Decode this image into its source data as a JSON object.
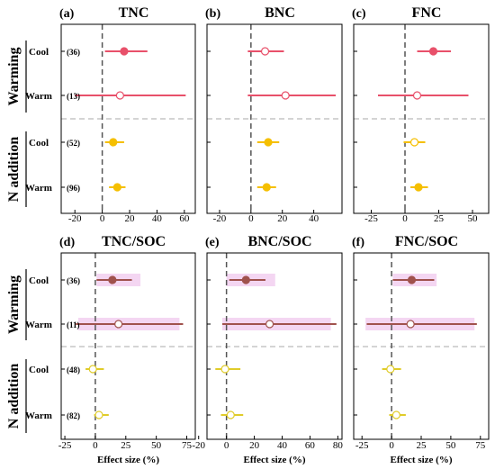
{
  "colors": {
    "warming_top": "#e8506a",
    "n_addition_top": "#f5bf00",
    "warming_bottom": "#a0524d",
    "n_addition_bottom": "#e0cc2a",
    "band": "#f4d6f2",
    "axis": "#000000",
    "dashed_zero": "#555555",
    "separator": "#aaaaaa"
  },
  "row_labels": [
    "Cool",
    "Warm",
    "Cool",
    "Warm"
  ],
  "group_labels": [
    "Warming",
    "N addition"
  ],
  "x_axis_label": "Effect size (%)",
  "chart_data": [
    {
      "type": "forest",
      "panel_label": "(a)",
      "title": "TNC",
      "xlim": [
        -30,
        68
      ],
      "xticks": [
        -20,
        0,
        20,
        40,
        60
      ],
      "counts": [
        "(36)",
        "(13)",
        "(52)",
        "(96)"
      ],
      "points": [
        {
          "group": "Warming",
          "row": "Cool",
          "mean": 16,
          "ci": [
            2,
            33
          ],
          "significant": true
        },
        {
          "group": "Warming",
          "row": "Warm",
          "mean": 13,
          "ci": [
            -20,
            61
          ],
          "significant": false
        },
        {
          "group": "N addition",
          "row": "Cool",
          "mean": 8,
          "ci": [
            2,
            16
          ],
          "significant": true
        },
        {
          "group": "N addition",
          "row": "Warm",
          "mean": 11,
          "ci": [
            5,
            17
          ],
          "significant": true
        }
      ]
    },
    {
      "type": "forest",
      "panel_label": "(b)",
      "title": "BNC",
      "xlim": [
        -28,
        58
      ],
      "xticks": [
        -20,
        0,
        20,
        40
      ],
      "counts": [],
      "points": [
        {
          "group": "Warming",
          "row": "Cool",
          "mean": 9,
          "ci": [
            -2,
            21
          ],
          "significant": false
        },
        {
          "group": "Warming",
          "row": "Warm",
          "mean": 22,
          "ci": [
            -2,
            54
          ],
          "significant": false
        },
        {
          "group": "N addition",
          "row": "Cool",
          "mean": 11,
          "ci": [
            4,
            18
          ],
          "significant": true
        },
        {
          "group": "N addition",
          "row": "Warm",
          "mean": 10,
          "ci": [
            4,
            16
          ],
          "significant": true
        }
      ]
    },
    {
      "type": "forest",
      "panel_label": "(c)",
      "title": "FNC",
      "xlim": [
        -38,
        62
      ],
      "xticks": [
        -25,
        0,
        25,
        50
      ],
      "counts": [],
      "points": [
        {
          "group": "Warming",
          "row": "Cool",
          "mean": 21,
          "ci": [
            9,
            34
          ],
          "significant": true
        },
        {
          "group": "Warming",
          "row": "Warm",
          "mean": 9,
          "ci": [
            -20,
            47
          ],
          "significant": false
        },
        {
          "group": "N addition",
          "row": "Cool",
          "mean": 7,
          "ci": [
            -1,
            15
          ],
          "significant": false
        },
        {
          "group": "N addition",
          "row": "Warm",
          "mean": 10,
          "ci": [
            4,
            17
          ],
          "significant": true
        }
      ]
    },
    {
      "type": "forest",
      "panel_label": "(d)",
      "title": "TNC/SOC",
      "xlim": [
        -28,
        82
      ],
      "xticks": [
        -25,
        0,
        25,
        50,
        75
      ],
      "counts": [
        "(36)",
        "(11)",
        "(48)",
        "(82)"
      ],
      "points": [
        {
          "group": "Warming",
          "row": "Cool",
          "mean": 14,
          "ci": [
            1,
            30
          ],
          "significant": true,
          "band": [
            1,
            37
          ]
        },
        {
          "group": "Warming",
          "row": "Warm",
          "mean": 19,
          "ci": [
            -16,
            72
          ],
          "significant": false,
          "band": [
            -14,
            69
          ]
        },
        {
          "group": "N addition",
          "row": "Cool",
          "mean": -2,
          "ci": [
            -8,
            7
          ],
          "significant": false
        },
        {
          "group": "N addition",
          "row": "Warm",
          "mean": 3,
          "ci": [
            -1,
            11
          ],
          "significant": false
        }
      ]
    },
    {
      "type": "forest",
      "panel_label": "(e)",
      "title": "BNC/SOC",
      "xlim": [
        -14,
        83
      ],
      "xticks": [
        -20,
        0,
        20,
        40,
        60,
        80
      ],
      "counts": [],
      "points": [
        {
          "group": "Warming",
          "row": "Cool",
          "mean": 14,
          "ci": [
            2,
            28
          ],
          "significant": true,
          "band": [
            0,
            35
          ]
        },
        {
          "group": "Warming",
          "row": "Warm",
          "mean": 31,
          "ci": [
            -3,
            79
          ],
          "significant": false,
          "band": [
            -3,
            75
          ]
        },
        {
          "group": "N addition",
          "row": "Cool",
          "mean": -1,
          "ci": [
            -8,
            10
          ],
          "significant": false
        },
        {
          "group": "N addition",
          "row": "Warm",
          "mean": 3,
          "ci": [
            -4,
            12
          ],
          "significant": false
        }
      ]
    },
    {
      "type": "forest",
      "panel_label": "(f)",
      "title": "FNC/SOC",
      "xlim": [
        -32,
        82
      ],
      "xticks": [
        -25,
        0,
        25,
        50,
        75
      ],
      "counts": [],
      "points": [
        {
          "group": "Warming",
          "row": "Cool",
          "mean": 17,
          "ci": [
            1,
            36
          ],
          "significant": true,
          "band": [
            1,
            38
          ]
        },
        {
          "group": "Warming",
          "row": "Warm",
          "mean": 16,
          "ci": [
            -21,
            72
          ],
          "significant": false,
          "band": [
            -22,
            70
          ]
        },
        {
          "group": "N addition",
          "row": "Cool",
          "mean": -1,
          "ci": [
            -8,
            8
          ],
          "significant": false
        },
        {
          "group": "N addition",
          "row": "Warm",
          "mean": 4,
          "ci": [
            -2,
            12
          ],
          "significant": false
        }
      ]
    }
  ]
}
